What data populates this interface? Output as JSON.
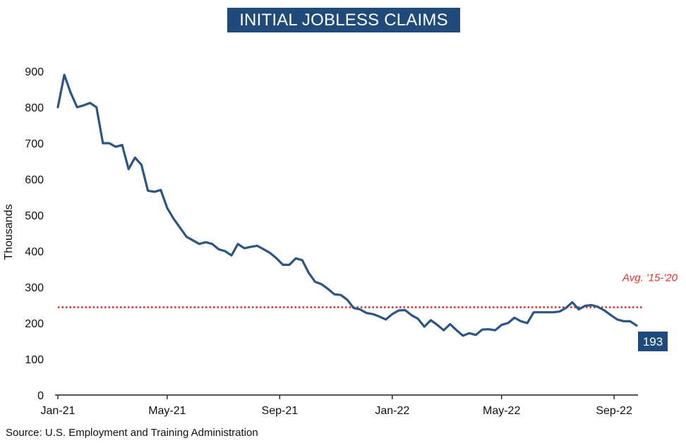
{
  "chart_data": {
    "type": "line",
    "title": "INITIAL JOBLESS CLAIMS",
    "ylabel": "Thousands",
    "xlabel": "",
    "ylim": [
      0,
      900
    ],
    "yticks": [
      0,
      100,
      200,
      300,
      400,
      500,
      600,
      700,
      800,
      900
    ],
    "xlim": [
      0,
      90
    ],
    "xticks": [
      {
        "label": "Jan-21",
        "week": 0
      },
      {
        "label": "May-21",
        "week": 17
      },
      {
        "label": "Sep-21",
        "week": 34.5
      },
      {
        "label": "Jan-22",
        "week": 52
      },
      {
        "label": "May-22",
        "week": 69
      },
      {
        "label": "Sep-22",
        "week": 86.5
      }
    ],
    "grid": false,
    "series": [
      {
        "color": "#2a5584",
        "values": [
          800,
          890,
          840,
          800,
          805,
          812,
          800,
          700,
          700,
          690,
          695,
          628,
          660,
          640,
          568,
          565,
          570,
          520,
          490,
          465,
          440,
          430,
          420,
          425,
          420,
          405,
          400,
          388,
          420,
          408,
          412,
          415,
          405,
          395,
          380,
          362,
          362,
          380,
          375,
          340,
          315,
          308,
          295,
          280,
          278,
          265,
          242,
          238,
          228,
          225,
          218,
          210,
          225,
          235,
          236,
          222,
          212,
          190,
          208,
          195,
          180,
          197,
          180,
          165,
          172,
          167,
          182,
          183,
          180,
          195,
          200,
          215,
          205,
          200,
          230,
          230,
          230,
          230,
          232,
          242,
          258,
          238,
          248,
          250,
          245,
          235,
          222,
          210,
          205,
          205,
          193
        ]
      }
    ],
    "reference_line": {
      "label": "Avg. '15-'20",
      "value": 244,
      "color": "#e0302a"
    },
    "end_label": "193",
    "source": "Source: U.S. Employment and Training Administration"
  }
}
